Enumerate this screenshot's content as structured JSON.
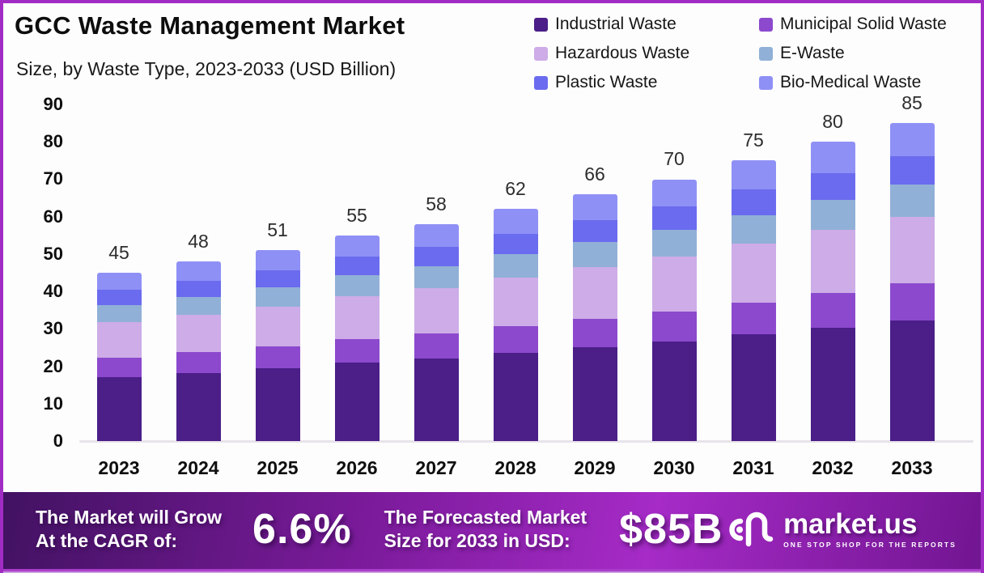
{
  "header": {
    "title": "GCC Waste Management Market",
    "subtitle": "Size, by Waste Type, 2023-2033 (USD Billion)"
  },
  "chart_data": {
    "type": "bar",
    "stacked": true,
    "title": "GCC Waste Management Market Size, by Waste Type, 2023-2033 (USD Billion)",
    "xlabel": "",
    "ylabel": "",
    "ylim": [
      0,
      90
    ],
    "yticks": [
      0,
      10,
      20,
      30,
      40,
      50,
      60,
      70,
      80,
      90
    ],
    "grid": false,
    "legend_position": "top-right",
    "categories": [
      "2023",
      "2024",
      "2025",
      "2026",
      "2027",
      "2028",
      "2029",
      "2030",
      "2031",
      "2032",
      "2033"
    ],
    "totals": [
      45,
      48,
      51,
      55,
      58,
      62,
      66,
      70,
      75,
      80,
      85
    ],
    "series": [
      {
        "name": "Industrial Waste",
        "color": "#4B1E88",
        "values": [
          17.1,
          18.2,
          19.4,
          20.9,
          22.0,
          23.6,
          25.1,
          26.6,
          28.5,
          30.4,
          32.3
        ]
      },
      {
        "name": "Municipal Solid Waste",
        "color": "#8C49CD",
        "values": [
          5.2,
          5.5,
          5.9,
          6.3,
          6.7,
          7.1,
          7.6,
          8.1,
          8.6,
          9.2,
          9.8
        ]
      },
      {
        "name": "Hazardous Waste",
        "color": "#CDACE7",
        "values": [
          9.5,
          10.1,
          10.7,
          11.6,
          12.2,
          13.0,
          13.9,
          14.7,
          15.8,
          16.8,
          17.9
        ]
      },
      {
        "name": "E-Waste",
        "color": "#91B0D7",
        "values": [
          4.5,
          4.8,
          5.1,
          5.5,
          5.8,
          6.2,
          6.6,
          7.0,
          7.5,
          8.0,
          8.5
        ]
      },
      {
        "name": "Plastic Waste",
        "color": "#6B6BEF",
        "values": [
          4.1,
          4.3,
          4.6,
          5.0,
          5.2,
          5.6,
          5.9,
          6.3,
          6.8,
          7.2,
          7.7
        ]
      },
      {
        "name": "Bio-Medical Waste",
        "color": "#8F90F5",
        "values": [
          4.6,
          5.1,
          5.3,
          5.7,
          6.1,
          6.5,
          6.9,
          7.3,
          7.8,
          8.4,
          8.8
        ]
      }
    ]
  },
  "footer": {
    "cagr": {
      "label_lines": [
        "The Market will Grow",
        "At the CAGR of:"
      ],
      "value": "6.6%"
    },
    "forecast": {
      "label_lines": [
        "The Forecasted Market",
        "Size for 2033 in USD:"
      ],
      "value": "$85B"
    },
    "brand": {
      "name": "market.us",
      "tagline": "ONE STOP SHOP FOR THE REPORTS"
    }
  },
  "colors": {
    "frame_border": "#a12cc4",
    "axis_line": "#e7e4ea",
    "total_label_text": "#2d2d2d",
    "banner_gradient": [
      "#411261",
      "#7c1b9c",
      "#a62bc7",
      "#711591"
    ],
    "banner_substrip": [
      "#a93bc9",
      "#d9c6e8"
    ]
  }
}
